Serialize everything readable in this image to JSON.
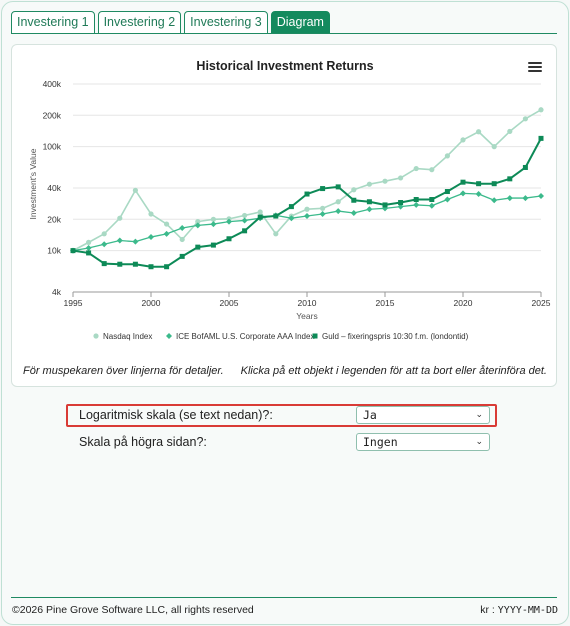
{
  "tabs": [
    {
      "label": "Investering 1",
      "active": false
    },
    {
      "label": "Investering 2",
      "active": false
    },
    {
      "label": "Investering 3",
      "active": false
    },
    {
      "label": "Diagram",
      "active": true
    }
  ],
  "colors": {
    "accent": "#148a5e",
    "nasdaq": "#a9d9c4",
    "ice": "#3cba8c",
    "gold": "#0d8a57",
    "highlight": "#d93b36"
  },
  "chart_data": {
    "type": "line",
    "title": "Historical Investment Returns",
    "xlabel": "Years",
    "ylabel": "Investment's Value",
    "xlim": [
      1995,
      2025
    ],
    "ylim": [
      4000,
      400000
    ],
    "y_scale": "log",
    "x_ticks": [
      1995,
      2000,
      2005,
      2010,
      2015,
      2020,
      2025
    ],
    "y_ticks": [
      {
        "value": 4000,
        "label": "4k"
      },
      {
        "value": 10000,
        "label": "10k"
      },
      {
        "value": 20000,
        "label": "20k"
      },
      {
        "value": 40000,
        "label": "40k"
      },
      {
        "value": 100000,
        "label": "100k"
      },
      {
        "value": 200000,
        "label": "200k"
      },
      {
        "value": 400000,
        "label": "400k"
      }
    ],
    "legend_position": "bottom",
    "grid": true,
    "x": [
      1995,
      1996,
      1997,
      1998,
      1999,
      2000,
      2001,
      2002,
      2003,
      2004,
      2005,
      2006,
      2007,
      2008,
      2009,
      2010,
      2011,
      2012,
      2013,
      2014,
      2015,
      2016,
      2017,
      2018,
      2019,
      2020,
      2021,
      2022,
      2023,
      2024,
      2025
    ],
    "series": [
      {
        "name": "Nasdaq Index",
        "marker": "circle",
        "values": [
          10000,
          12000,
          14500,
          20500,
          38000,
          22500,
          18000,
          12800,
          19000,
          20000,
          20200,
          21800,
          23500,
          14500,
          21500,
          25000,
          25500,
          29500,
          38500,
          43500,
          46500,
          50000,
          61500,
          60000,
          81500,
          116000,
          139000,
          100000,
          140000,
          185000,
          226000
        ]
      },
      {
        "name": "ICE BofAML U.S. Corporate AAA Index",
        "marker": "diamond",
        "values": [
          10000,
          10600,
          11500,
          12500,
          12200,
          13500,
          14500,
          16500,
          17500,
          18000,
          19000,
          19500,
          20500,
          21800,
          20500,
          21500,
          22500,
          24000,
          23000,
          25000,
          25500,
          26500,
          27500,
          27000,
          31000,
          35500,
          35000,
          30500,
          32000,
          32000,
          33500
        ]
      },
      {
        "name": "Guld – fixeringspris 10:30 f.m. (londontid)",
        "marker": "square",
        "values": [
          10000,
          9500,
          7500,
          7400,
          7400,
          7000,
          7000,
          8800,
          10800,
          11300,
          13000,
          15500,
          21000,
          21500,
          26500,
          35000,
          39500,
          41000,
          30500,
          29500,
          27500,
          29000,
          31000,
          31000,
          37000,
          45500,
          44000,
          44000,
          49000,
          63000,
          120000
        ]
      }
    ]
  },
  "hints": {
    "left": "För muspekaren över linjerna för detaljer.",
    "right": "Klicka på ett objekt i legenden för att ta bort eller återinföra det."
  },
  "options": {
    "log_scale": {
      "label": "Logaritmisk skala (se text nedan)?:",
      "value": "Ja"
    },
    "right_scale": {
      "label": "Skala på högra sidan?:",
      "value": "Ingen"
    }
  },
  "footer": {
    "copyright": "©2026 Pine Grove Software LLC, all rights reserved",
    "kr_label": "kr :",
    "date_format": "YYYY-MM-DD"
  }
}
